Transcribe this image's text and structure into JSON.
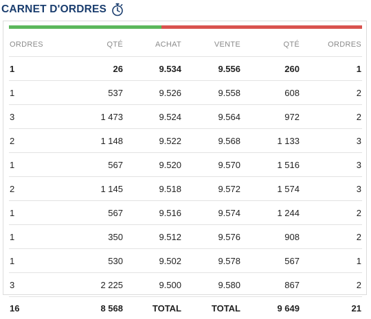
{
  "header": {
    "title": "CARNET D'ORDRES",
    "icon": "timer-icon"
  },
  "colors": {
    "title": "#1a3d6e",
    "buy": "#5cb85c",
    "sell": "#d9534f"
  },
  "ratio": {
    "buy_fraction": 0.432
  },
  "columns": [
    "ORDRES",
    "QTÉ",
    "ACHAT",
    "VENTE",
    "QTÉ",
    "ORDRES"
  ],
  "rows": [
    [
      "1",
      "26",
      "9.534",
      "9.556",
      "260",
      "1"
    ],
    [
      "1",
      "537",
      "9.526",
      "9.558",
      "608",
      "2"
    ],
    [
      "3",
      "1 473",
      "9.524",
      "9.564",
      "972",
      "2"
    ],
    [
      "2",
      "1 148",
      "9.522",
      "9.568",
      "1 133",
      "3"
    ],
    [
      "1",
      "567",
      "9.520",
      "9.570",
      "1 516",
      "3"
    ],
    [
      "2",
      "1 145",
      "9.518",
      "9.572",
      "1 574",
      "3"
    ],
    [
      "1",
      "567",
      "9.516",
      "9.574",
      "1 244",
      "2"
    ],
    [
      "1",
      "350",
      "9.512",
      "9.576",
      "908",
      "2"
    ],
    [
      "1",
      "530",
      "9.502",
      "9.578",
      "567",
      "1"
    ],
    [
      "3",
      "2 225",
      "9.500",
      "9.580",
      "867",
      "2"
    ]
  ],
  "totals": [
    "16",
    "8 568",
    "TOTAL",
    "TOTAL",
    "9 649",
    "21"
  ]
}
